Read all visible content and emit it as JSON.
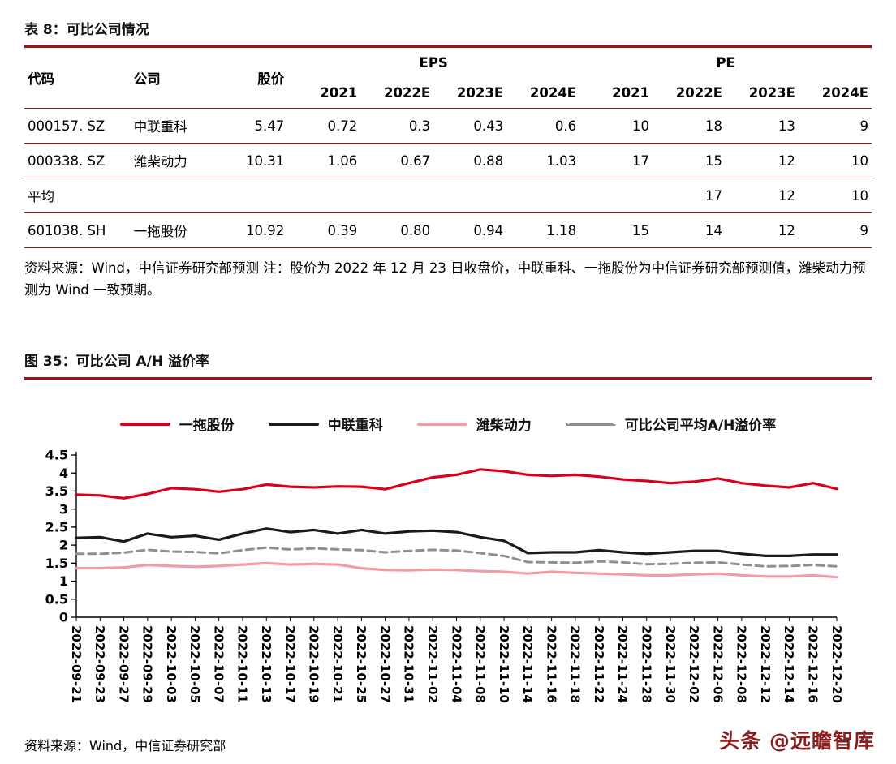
{
  "table_section": {
    "title": "表 8：可比公司情况",
    "table": {
      "headers": {
        "code": "代码",
        "company": "公司",
        "price": "股价",
        "eps_group": "EPS",
        "pe_group": "PE"
      },
      "year_headers": [
        "2021",
        "2022E",
        "2023E",
        "2024E",
        "2021",
        "2022E",
        "2023E",
        "2024E"
      ],
      "rows": [
        [
          "000157. SZ",
          "中联重科",
          "5.47",
          "0.72",
          "0.3",
          "0.43",
          "0.6",
          "10",
          "18",
          "13",
          "9"
        ],
        [
          "000338. SZ",
          "潍柴动力",
          "10.31",
          "1.06",
          "0.67",
          "0.88",
          "1.03",
          "17",
          "15",
          "12",
          "10"
        ],
        [
          "平均",
          "",
          "",
          "",
          "",
          "",
          "",
          "",
          "17",
          "12",
          "10"
        ],
        [
          "601038. SH",
          "一拖股份",
          "10.92",
          "0.39",
          "0.80",
          "0.94",
          "1.18",
          "15",
          "14",
          "12",
          "9"
        ]
      ]
    },
    "source_note": "资料来源：Wind，中信证券研究部预测    注：股价为 2022 年 12 月 23 日收盘价，中联重科、一拖股份为中信证券研究部预测值，潍柴动力预测为 Wind 一致预期。"
  },
  "figure_section": {
    "title": "图 35：可比公司 A/H 溢价率",
    "source_note": "资料来源：Wind，中信证券研究部"
  },
  "watermark": "头条 @远瞻智库",
  "colors": {
    "rule": "#9d1317",
    "red_line": "#d9001f",
    "black_line": "#1a1a1a",
    "pink_line": "#f19ca7",
    "gray_line": "#8f8f8f",
    "watermark": "#8a1d1d"
  },
  "chart_data": {
    "type": "line",
    "title": "可比公司 A/H 溢价率",
    "xlabel": "",
    "ylabel": "",
    "ylim": [
      0,
      4.5
    ],
    "y_ticks": [
      0,
      0.5,
      1,
      1.5,
      2,
      2.5,
      3,
      3.5,
      4,
      4.5
    ],
    "grid": false,
    "legend_position": "top",
    "x_labels": [
      "2022-09-21",
      "2022-09-23",
      "2022-09-27",
      "2022-09-29",
      "2022-10-03",
      "2022-10-05",
      "2022-10-07",
      "2022-10-11",
      "2022-10-13",
      "2022-10-17",
      "2022-10-19",
      "2022-10-21",
      "2022-10-25",
      "2022-10-27",
      "2022-10-31",
      "2022-11-02",
      "2022-11-04",
      "2022-11-08",
      "2022-11-10",
      "2022-11-14",
      "2022-11-16",
      "2022-11-18",
      "2022-11-22",
      "2022-11-24",
      "2022-11-28",
      "2022-11-30",
      "2022-12-02",
      "2022-12-06",
      "2022-12-08",
      "2022-12-12",
      "2022-12-14",
      "2022-12-16",
      "2022-12-20"
    ],
    "series": [
      {
        "name": "一拖股份",
        "color": "#d9001f",
        "style": "solid",
        "values": [
          3.4,
          3.38,
          3.3,
          3.42,
          3.58,
          3.55,
          3.48,
          3.55,
          3.68,
          3.62,
          3.6,
          3.63,
          3.62,
          3.55,
          3.72,
          3.88,
          3.95,
          4.1,
          4.05,
          3.95,
          3.92,
          3.95,
          3.9,
          3.82,
          3.78,
          3.72,
          3.76,
          3.85,
          3.72,
          3.65,
          3.6,
          3.72,
          3.56
        ]
      },
      {
        "name": "中联重科",
        "color": "#1a1a1a",
        "style": "solid",
        "values": [
          2.2,
          2.22,
          2.1,
          2.32,
          2.22,
          2.26,
          2.15,
          2.32,
          2.46,
          2.36,
          2.42,
          2.32,
          2.42,
          2.32,
          2.38,
          2.4,
          2.36,
          2.22,
          2.12,
          1.78,
          1.8,
          1.8,
          1.86,
          1.8,
          1.76,
          1.8,
          1.84,
          1.84,
          1.76,
          1.7,
          1.7,
          1.74,
          1.74
        ]
      },
      {
        "name": "潍柴动力",
        "color": "#f19ca7",
        "style": "solid",
        "values": [
          1.36,
          1.36,
          1.38,
          1.45,
          1.42,
          1.4,
          1.42,
          1.46,
          1.5,
          1.46,
          1.48,
          1.46,
          1.36,
          1.31,
          1.3,
          1.32,
          1.31,
          1.28,
          1.26,
          1.21,
          1.26,
          1.23,
          1.21,
          1.19,
          1.16,
          1.16,
          1.19,
          1.21,
          1.16,
          1.13,
          1.13,
          1.16,
          1.11
        ]
      },
      {
        "name": "可比公司平均A/H溢价率",
        "color": "#8f8f8f",
        "style": "dashed",
        "values": [
          1.76,
          1.76,
          1.79,
          1.87,
          1.82,
          1.81,
          1.77,
          1.86,
          1.93,
          1.88,
          1.91,
          1.88,
          1.86,
          1.8,
          1.84,
          1.87,
          1.85,
          1.78,
          1.7,
          1.53,
          1.52,
          1.51,
          1.55,
          1.52,
          1.47,
          1.48,
          1.51,
          1.52,
          1.46,
          1.41,
          1.42,
          1.45,
          1.41
        ]
      }
    ]
  }
}
